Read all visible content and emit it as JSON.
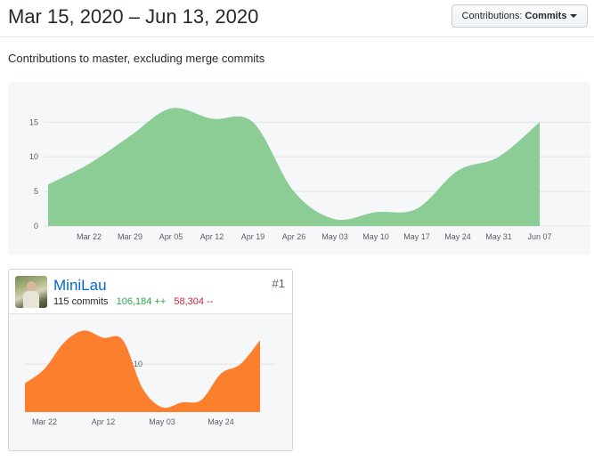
{
  "header": {
    "date_range": "Mar 15, 2020 – Jun 13, 2020",
    "contributions_label": "Contributions:",
    "contributions_value": "Commits"
  },
  "subtitle": "Contributions to master, excluding merge commits",
  "colors": {
    "main_area": "#8ccc95",
    "user_area": "#fb7f2c",
    "link": "#0366d6",
    "additions": "#28a745",
    "deletions": "#cb2431"
  },
  "chart_data": [
    {
      "type": "area",
      "x": [
        "Mar 15",
        "Mar 22",
        "Mar 29",
        "Apr 05",
        "Apr 12",
        "Apr 19",
        "Apr 26",
        "May 03",
        "May 10",
        "May 17",
        "May 24",
        "May 31",
        "Jun 07"
      ],
      "x_tick_labels": [
        "Mar 22",
        "Mar 29",
        "Apr 05",
        "Apr 12",
        "Apr 19",
        "Apr 26",
        "May 03",
        "May 10",
        "May 17",
        "May 24",
        "May 31",
        "Jun 07"
      ],
      "values": [
        6,
        9,
        13,
        17,
        15.5,
        15,
        5,
        1,
        2,
        2.5,
        8,
        10,
        15
      ],
      "y_ticks": [
        0,
        5,
        10,
        15
      ],
      "ylim": [
        0,
        18
      ],
      "grid": true
    },
    {
      "type": "area",
      "x": [
        "Mar 15",
        "Mar 22",
        "Mar 29",
        "Apr 05",
        "Apr 12",
        "Apr 19",
        "Apr 26",
        "May 03",
        "May 10",
        "May 17",
        "May 24",
        "May 31",
        "Jun 07"
      ],
      "x_tick_labels": [
        "Mar 22",
        "Apr 12",
        "May 03",
        "May 24"
      ],
      "values": [
        6,
        9,
        14.5,
        17,
        15.5,
        15,
        5,
        1,
        2,
        2.5,
        8,
        10,
        15
      ],
      "y_ticks": [
        10
      ],
      "ylim": [
        0,
        18
      ],
      "grid": true
    }
  ],
  "contributor": {
    "name": "MiniLau",
    "commits": "115 commits",
    "additions": "106,184 ++",
    "deletions": "58,304 --",
    "rank": "#1"
  }
}
